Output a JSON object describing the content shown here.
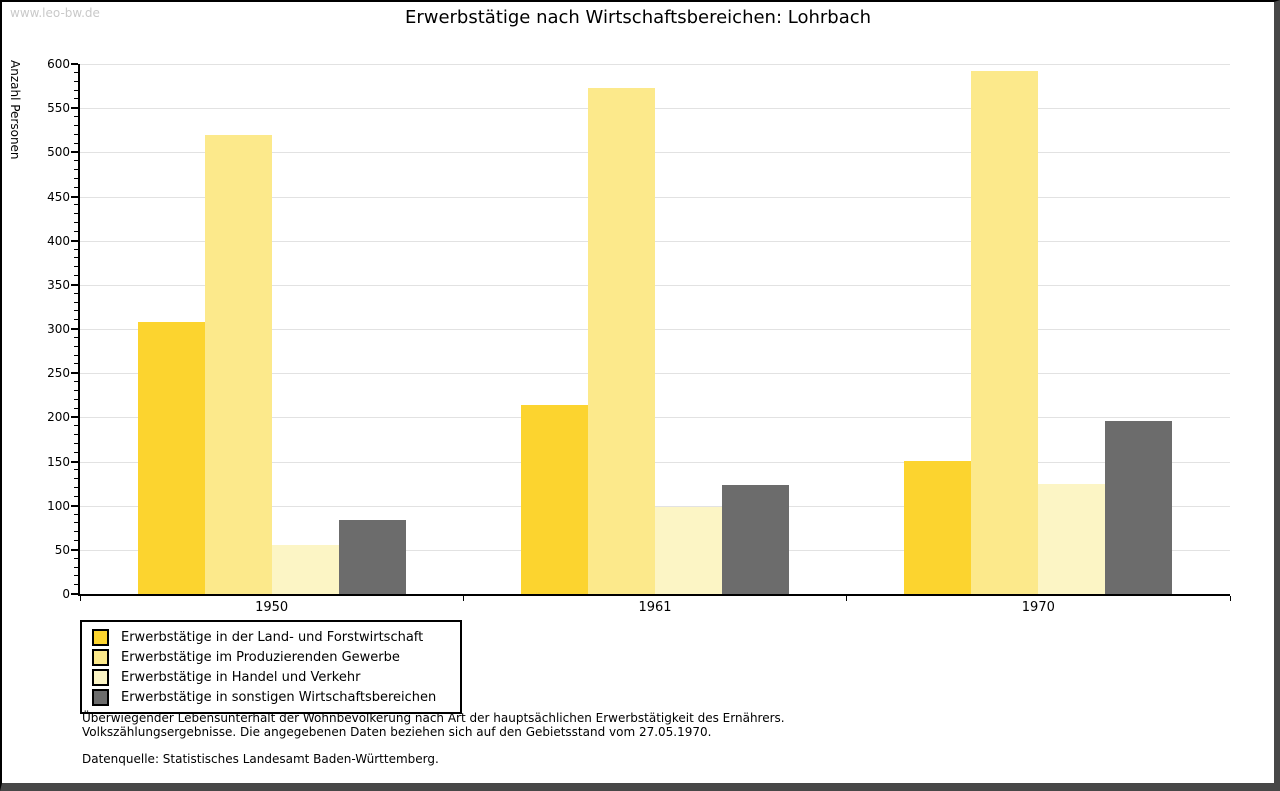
{
  "watermark": "www.leo-bw.de",
  "chart_data": {
    "type": "bar",
    "title": "Erwerbstätige nach Wirtschaftsbereichen: Lohrbach",
    "ylabel": "Anzahl Personen",
    "xlabel": "",
    "categories": [
      "1950",
      "1961",
      "1970"
    ],
    "series": [
      {
        "name": "Erwerbstätige in der Land- und Forstwirtschaft",
        "color": "#FCD42F",
        "values": [
          308,
          214,
          151
        ]
      },
      {
        "name": "Erwerbstätige im Produzierenden Gewerbe",
        "color": "#FCE98B",
        "values": [
          520,
          573,
          592
        ]
      },
      {
        "name": "Erwerbstätige in Handel und Verkehr",
        "color": "#FCF5C5",
        "values": [
          56,
          99,
          124
        ]
      },
      {
        "name": "Erwerbstätige in sonstigen Wirtschaftsbereichen",
        "color": "#6C6C6C",
        "values": [
          84,
          123,
          196
        ]
      }
    ],
    "ylim": [
      0,
      600
    ],
    "y_major_step": 50,
    "y_minor_step": 10,
    "grid": true,
    "legend_position": "bottom-left"
  },
  "footnotes": {
    "line1": "Überwiegender Lebensunterhalt der Wohnbevölkerung nach Art der hauptsächlichen Erwerbstätigkeit des Ernährers.",
    "line2": "Volkszählungsergebnisse. Die angegebenen Daten beziehen sich auf den Gebietsstand vom 27.05.1970.",
    "source": "Datenquelle: Statistisches Landesamt Baden-Württemberg."
  },
  "colors": {
    "grid": "#e2e2e2",
    "axis": "#000000",
    "watermark": "#c9c9c9",
    "frame_border": "#000000",
    "frame_shadow": "#474747"
  }
}
